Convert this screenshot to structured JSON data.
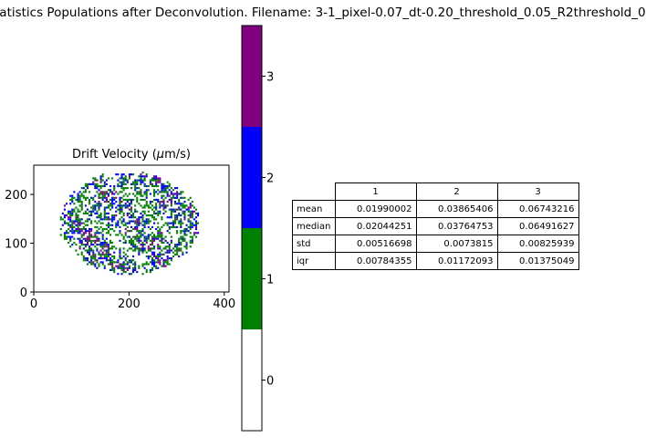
{
  "figure": {
    "suptitle": "tatistics Populations after Deconvolution. Filename: 3-1_pixel-0.07_dt-0.20_threshold_0.05_R2threshold_0"
  },
  "chart_data": [
    {
      "type": "heatmap",
      "title": "Drift Velocity (μm/s)",
      "xlabel": "",
      "ylabel": "",
      "xlim": [
        0,
        410
      ],
      "ylim": [
        0,
        260
      ],
      "xticks": [
        "0",
        "200",
        "400"
      ],
      "yticks": [
        "0",
        "100",
        "200"
      ],
      "grid": false,
      "categories": [
        "0",
        "1",
        "2",
        "3"
      ],
      "category_colors": [
        "#ffffff",
        "#008000",
        "#0000ff",
        "#800080"
      ],
      "region": {
        "center_x": 200,
        "center_y": 140,
        "radius_x": 145,
        "radius_y": 105
      },
      "approx_fraction_by_category": {
        "0": 0.55,
        "1": 0.27,
        "2": 0.17,
        "3": 0.01
      }
    },
    {
      "type": "colorbar",
      "values": [
        0,
        1,
        2,
        3
      ],
      "tick_labels": [
        "0",
        "1",
        "2",
        "3"
      ],
      "colors": [
        "#ffffff",
        "#008000",
        "#0000ff",
        "#800080"
      ]
    },
    {
      "type": "table",
      "columns": [
        "1",
        "2",
        "3"
      ],
      "rows": [
        {
          "label": "mean",
          "values": [
            "0.01990002",
            "0.03865406",
            "0.06743216"
          ]
        },
        {
          "label": "median",
          "values": [
            "0.02044251",
            "0.03764753",
            "0.06491627"
          ]
        },
        {
          "label": "std",
          "values": [
            "0.00516698",
            "0.0073815",
            "0.00825939"
          ]
        },
        {
          "label": "iqr",
          "values": [
            "0.00784355",
            "0.01172093",
            "0.01375049"
          ]
        }
      ]
    }
  ]
}
